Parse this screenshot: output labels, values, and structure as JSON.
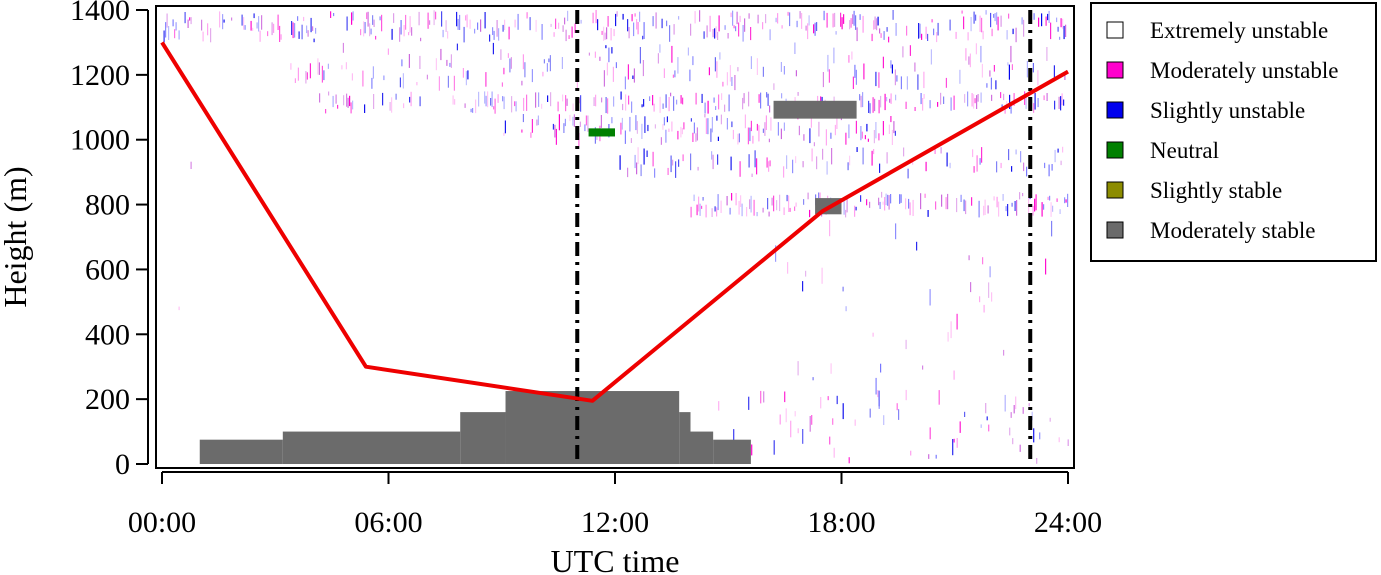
{
  "chart_data": {
    "type": "heatmap",
    "xlabel": "UTC time",
    "ylabel": "Height (m)",
    "x_unit": "hours UTC",
    "xlim": [
      0,
      24
    ],
    "ylim": [
      0,
      1400
    ],
    "x_ticks": [
      0,
      6,
      12,
      18,
      24
    ],
    "x_tick_labels": [
      "00:00",
      "06:00",
      "12:00",
      "18:00",
      "24:00"
    ],
    "y_ticks": [
      0,
      200,
      400,
      600,
      800,
      1000,
      1200,
      1400
    ],
    "y_tick_labels": [
      "0",
      "200",
      "400",
      "600",
      "800",
      "1000",
      "1200",
      "1400"
    ],
    "grid": false,
    "legend_position": "outside-right",
    "categories": [
      {
        "name": "Extremely unstable",
        "color": "#ffffff"
      },
      {
        "name": "Moderately unstable",
        "color": "#ff00cc"
      },
      {
        "name": "Slightly unstable",
        "color": "#0000ee"
      },
      {
        "name": "Neutral",
        "color": "#008000"
      },
      {
        "name": "Slightly stable",
        "color": "#8c8c00"
      },
      {
        "name": "Moderately stable",
        "color": "#6b6b6b"
      }
    ],
    "stable_layer_regions": [
      {
        "class": "Moderately stable",
        "x0": 1.0,
        "x1": 3.2,
        "y0": 0,
        "y1": 75
      },
      {
        "class": "Moderately stable",
        "x0": 3.2,
        "x1": 7.9,
        "y0": 0,
        "y1": 100
      },
      {
        "class": "Moderately stable",
        "x0": 7.9,
        "x1": 9.1,
        "y0": 0,
        "y1": 160
      },
      {
        "class": "Moderately stable",
        "x0": 9.1,
        "x1": 13.7,
        "y0": 0,
        "y1": 225
      },
      {
        "class": "Moderately stable",
        "x0": 13.7,
        "x1": 14.0,
        "y0": 0,
        "y1": 160
      },
      {
        "class": "Moderately stable",
        "x0": 14.0,
        "x1": 14.6,
        "y0": 0,
        "y1": 100
      },
      {
        "class": "Moderately stable",
        "x0": 14.6,
        "x1": 15.6,
        "y0": 0,
        "y1": 75
      },
      {
        "class": "Moderately stable",
        "x0": 16.2,
        "x1": 18.4,
        "y0": 1065,
        "y1": 1120
      },
      {
        "class": "Moderately stable",
        "x0": 17.3,
        "x1": 18.0,
        "y0": 770,
        "y1": 820
      },
      {
        "class": "Neutral",
        "x0": 11.3,
        "x1": 12.0,
        "y0": 1010,
        "y1": 1035
      }
    ],
    "unstable_bands": [
      {
        "x0": 0.0,
        "x1": 24.0,
        "y0": 1300,
        "y1": 1400,
        "density": 0.45
      },
      {
        "x0": 3.2,
        "x1": 24.0,
        "y0": 1150,
        "y1": 1300,
        "density": 0.28
      },
      {
        "x0": 4.0,
        "x1": 24.0,
        "y0": 1080,
        "y1": 1150,
        "density": 0.32
      },
      {
        "x0": 9.0,
        "x1": 19.5,
        "y0": 980,
        "y1": 1080,
        "density": 0.4
      },
      {
        "x0": 12.0,
        "x1": 24.0,
        "y0": 880,
        "y1": 980,
        "density": 0.25
      },
      {
        "x0": 14.0,
        "x1": 24.0,
        "y0": 760,
        "y1": 840,
        "density": 0.42
      },
      {
        "x0": 16.0,
        "x1": 24.0,
        "y0": 100,
        "y1": 760,
        "density": 0.18
      },
      {
        "x0": 13.5,
        "x1": 24.0,
        "y0": 0,
        "y1": 230,
        "density": 0.22
      },
      {
        "x0": 0.0,
        "x1": 1.0,
        "y0": 0,
        "y1": 1300,
        "density": 0.12
      }
    ],
    "series": [
      {
        "type": "line",
        "color": "#ee0000",
        "x": [
          0.0,
          5.4,
          11.4,
          17.5,
          24.0
        ],
        "y": [
          1300,
          300,
          195,
          780,
          1210
        ]
      }
    ],
    "vertical_reference_lines": [
      {
        "style": "dash-dot",
        "x": 11.0
      },
      {
        "style": "dash-dot",
        "x": 23.0
      }
    ]
  }
}
